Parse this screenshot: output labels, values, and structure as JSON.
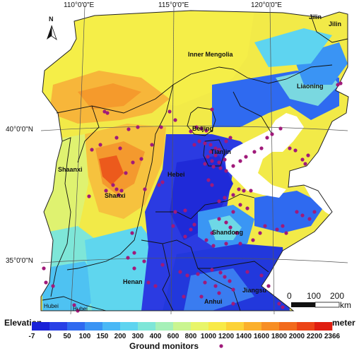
{
  "map": {
    "graticule_labels": {
      "lon_110": "110°0'0\"E",
      "lon_115": "115°0'0\"E",
      "lon_120": "120°0'0\"E",
      "lat_40": "40°0'0\"N",
      "lat_35": "35°0'0\"N"
    },
    "north_arrow": "N",
    "places": {
      "inner_mongolia": "Inner Mengolia",
      "liaoning": "Liaoning",
      "jilin_a": "Jilin",
      "jilin_b": "Jilin",
      "beijing": "Beijing",
      "tianjin": "Tianjin",
      "hebei": "Hebei",
      "shaanxi": "Shaanxi",
      "shanxi": "Shanxi",
      "shandong": "Shandong",
      "henan": "Henan",
      "anhui": "Anhui",
      "jiangsu": "Jiangsu",
      "hubei_a": "Hubei",
      "hubei_b": "Hubei"
    },
    "scale_bar": {
      "ticks": [
        "0",
        "100",
        "200"
      ],
      "unit": "km"
    }
  },
  "legend": {
    "title": "Elevation",
    "unit": "meter",
    "ticks": [
      "-7",
      "0",
      "50",
      "100",
      "150",
      "200",
      "300",
      "400",
      "600",
      "800",
      "1000",
      "1200",
      "1400",
      "1600",
      "1800",
      "2000",
      "2200",
      "2366"
    ],
    "colors": [
      "#1a22d8",
      "#2840e6",
      "#2f6af0",
      "#3a94f4",
      "#4ab8f6",
      "#5ed4f0",
      "#7ee6d8",
      "#a6f0b8",
      "#caf590",
      "#e8f56a",
      "#f8ea48",
      "#fcd238",
      "#fbb02c",
      "#f78e24",
      "#f26a1c",
      "#ec4416",
      "#e01e10"
    ],
    "monitor_label": "Ground monitors",
    "monitor_color": "#a01a7a"
  }
}
